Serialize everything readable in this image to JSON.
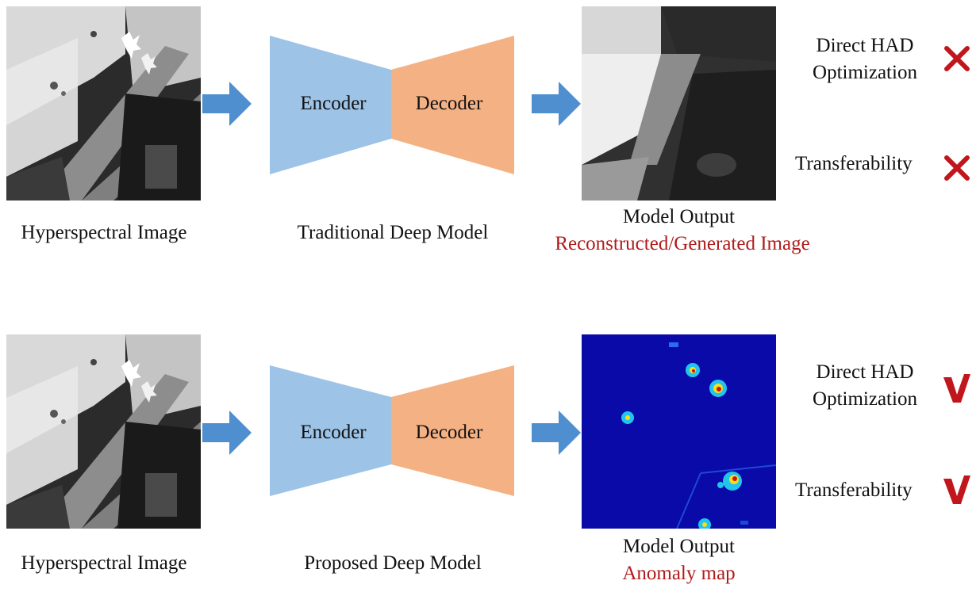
{
  "rows": [
    {
      "input_caption": "Hyperspectral Image",
      "encoder_label": "Encoder",
      "decoder_label": "Decoder",
      "model_caption": "Traditional Deep Model",
      "output_caption": "Model Output",
      "output_subcaption": "Reconstructed/Generated Image",
      "criteria": [
        {
          "label_line1": "Direct HAD",
          "label_line2": "Optimization",
          "mark": "cross-icon"
        },
        {
          "label_line1": "Transferability",
          "label_line2": "",
          "mark": "cross-icon"
        }
      ]
    },
    {
      "input_caption": "Hyperspectral Image",
      "encoder_label": "Encoder",
      "decoder_label": "Decoder",
      "model_caption": "Proposed Deep Model",
      "output_caption": "Model Output",
      "output_subcaption": "Anomaly map",
      "criteria": [
        {
          "label_line1": "Direct HAD",
          "label_line2": "Optimization",
          "mark": "check-icon"
        },
        {
          "label_line1": "Transferability",
          "label_line2": "",
          "mark": "check-icon"
        }
      ]
    }
  ],
  "colors": {
    "encoder": "#9dc3e6",
    "decoder": "#f4b183",
    "arrow": "#4f8fd0",
    "mark": "#c0161c",
    "subcaption": "#b11a1a",
    "anomaly_bg": "#0a0aa8"
  }
}
